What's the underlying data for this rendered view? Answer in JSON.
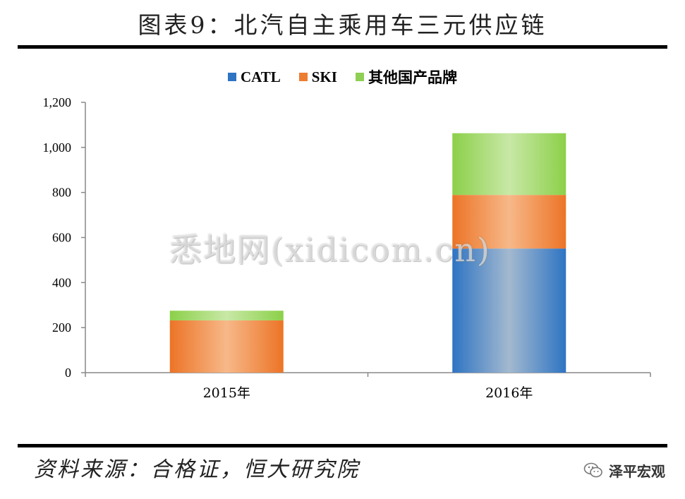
{
  "title": "图表9：北汽自主乘用车三元供应链",
  "source": "资料来源：合格证，恒大研究院",
  "brand": "泽平宏观",
  "watermark": "悉地网(xidicom.cn)",
  "colors": {
    "CATL": "#2e74c3",
    "SKI": "#ed7d31",
    "其他国产品牌": "#8fcf55"
  },
  "chart_data": {
    "type": "bar",
    "stacked": true,
    "categories": [
      "2015年",
      "2016年"
    ],
    "series": [
      {
        "name": "CATL",
        "values": [
          0,
          551
        ]
      },
      {
        "name": "SKI",
        "values": [
          232,
          238
        ]
      },
      {
        "name": "其他国产品牌",
        "values": [
          43,
          274
        ]
      }
    ],
    "ylim": [
      0,
      1200
    ],
    "yticks": [
      "0",
      "200",
      "400",
      "600",
      "800",
      "1,000",
      "1,200"
    ],
    "legend_position": "top",
    "grid": false
  }
}
